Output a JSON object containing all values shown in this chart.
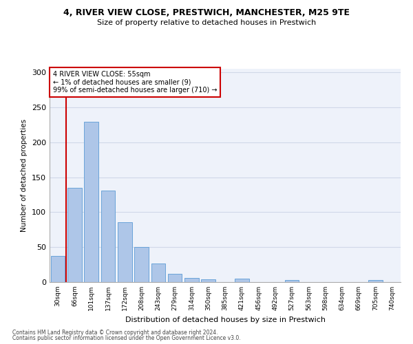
{
  "title1": "4, RIVER VIEW CLOSE, PRESTWICH, MANCHESTER, M25 9TE",
  "title2": "Size of property relative to detached houses in Prestwich",
  "xlabel": "Distribution of detached houses by size in Prestwich",
  "ylabel": "Number of detached properties",
  "categories": [
    "30sqm",
    "66sqm",
    "101sqm",
    "137sqm",
    "172sqm",
    "208sqm",
    "243sqm",
    "279sqm",
    "314sqm",
    "350sqm",
    "385sqm",
    "421sqm",
    "456sqm",
    "492sqm",
    "527sqm",
    "563sqm",
    "598sqm",
    "634sqm",
    "669sqm",
    "705sqm",
    "740sqm"
  ],
  "values": [
    37,
    135,
    229,
    131,
    86,
    50,
    27,
    12,
    6,
    4,
    0,
    5,
    0,
    0,
    3,
    0,
    0,
    0,
    0,
    3,
    0
  ],
  "bar_color": "#aec6e8",
  "bar_edgecolor": "#5b9bd5",
  "annotation_text_line1": "4 RIVER VIEW CLOSE: 55sqm",
  "annotation_text_line2": "← 1% of detached houses are smaller (9)",
  "annotation_text_line3": "99% of semi-detached houses are larger (710) →",
  "annotation_box_color": "white",
  "annotation_border_color": "#cc0000",
  "vline_color": "#cc0000",
  "grid_color": "#d0d8e8",
  "bg_color": "#eef2fa",
  "ylim": [
    0,
    305
  ],
  "yticks": [
    0,
    50,
    100,
    150,
    200,
    250,
    300
  ],
  "footnote1": "Contains HM Land Registry data © Crown copyright and database right 2024.",
  "footnote2": "Contains public sector information licensed under the Open Government Licence v3.0."
}
